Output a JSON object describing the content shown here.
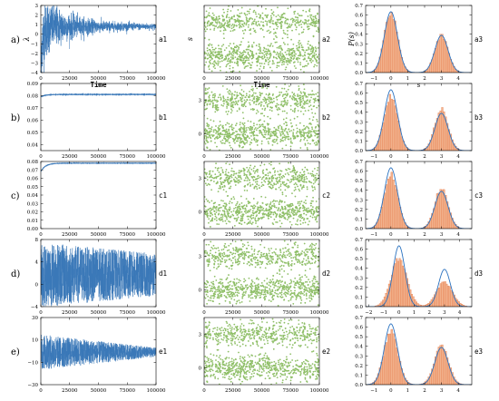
{
  "figure": {
    "rows": [
      {
        "row_label": "a)",
        "panels": [
          {
            "type": "line",
            "label": "a1",
            "ylim": [
              -4,
              3
            ],
            "yticks": [
              -4,
              -3,
              -2,
              -1,
              0,
              1,
              2,
              3
            ],
            "xticks": [
              0,
              25000,
              50000,
              75000,
              100000
            ],
            "xlabel": "Time",
            "ylabel": "λ",
            "signal": {
              "kind": "converge",
              "target": 0.8,
              "start": -3,
              "amp0": 2.8,
              "decay": 0.22,
              "floor": 0.35
            }
          },
          {
            "type": "scatter",
            "label": "a2",
            "ylim": [
              -1.5,
              4.5
            ],
            "yticks": [],
            "xticks": [
              0,
              25000,
              50000,
              75000,
              100000
            ],
            "xlabel": "Time",
            "ylabel": "s",
            "bands": [
              {
                "center": 0,
                "sd": 0.55
              },
              {
                "center": 3,
                "sd": 0.55
              }
            ]
          },
          {
            "type": "hist",
            "label": "a3",
            "xlim": [
              -1.5,
              4.8
            ],
            "xticks": [
              -1,
              0,
              1,
              2,
              3,
              4
            ],
            "ylim": [
              0,
              0.7
            ],
            "yticks": [
              0,
              0.1,
              0.2,
              0.3,
              0.4,
              0.5,
              0.6,
              0.7
            ],
            "xlabel": "s",
            "ylabel": "P(s)",
            "theory": {
              "w1": 0.62,
              "w2": 0.38,
              "sd": 0.39
            },
            "empirical": {
              "w1": 0.62,
              "w2": 0.38,
              "sd": 0.39
            }
          }
        ]
      },
      {
        "row_label": "b)",
        "panels": [
          {
            "type": "line",
            "label": "b1",
            "ylim": [
              0.035,
              0.09
            ],
            "yticks": [
              0.04,
              0.05,
              0.06,
              0.07,
              0.08,
              0.09
            ],
            "xticks": [
              0,
              25000,
              50000,
              75000,
              100000
            ],
            "xlabel": "",
            "ylabel": "",
            "signal": {
              "kind": "saturate",
              "start": 0.079,
              "target": 0.081
            }
          },
          {
            "type": "scatter",
            "label": "b2",
            "ylim": [
              -1.5,
              4.5
            ],
            "yticks": [
              0,
              3
            ],
            "xticks": [
              0,
              25000,
              50000,
              75000,
              100000
            ],
            "xlabel": "",
            "ylabel": "",
            "bands": [
              {
                "center": 0,
                "sd": 0.55
              },
              {
                "center": 3,
                "sd": 0.55
              }
            ]
          },
          {
            "type": "hist",
            "label": "b3",
            "xlim": [
              -1.5,
              4.8
            ],
            "xticks": [
              -1,
              0,
              1,
              2,
              3,
              4
            ],
            "ylim": [
              0,
              0.7
            ],
            "yticks": [
              0,
              0.1,
              0.2,
              0.3,
              0.4,
              0.5,
              0.6,
              0.7
            ],
            "xlabel": "",
            "ylabel": "",
            "theory": {
              "w1": 0.62,
              "w2": 0.38,
              "sd": 0.39
            },
            "empirical": {
              "w1": 0.57,
              "w2": 0.43,
              "sd": 0.4
            }
          }
        ]
      },
      {
        "row_label": "c)",
        "panels": [
          {
            "type": "line",
            "label": "c1",
            "ylim": [
              0,
              0.08
            ],
            "yticks": [
              0,
              0.01,
              0.02,
              0.03,
              0.04,
              0.05,
              0.06,
              0.07,
              0.08
            ],
            "xticks": [
              0,
              25000,
              50000,
              75000,
              100000
            ],
            "xlabel": "",
            "ylabel": "",
            "signal": {
              "kind": "saturate",
              "start": 0.068,
              "target": 0.078
            }
          },
          {
            "type": "scatter",
            "label": "c2",
            "ylim": [
              -1.5,
              4.5
            ],
            "yticks": [
              0,
              3
            ],
            "xticks": [
              0,
              25000,
              50000,
              75000,
              100000
            ],
            "xlabel": "",
            "ylabel": "",
            "bands": [
              {
                "center": 0,
                "sd": 0.55
              },
              {
                "center": 3,
                "sd": 0.55
              }
            ]
          },
          {
            "type": "hist",
            "label": "c3",
            "xlim": [
              -1.5,
              4.8
            ],
            "xticks": [
              -1,
              0,
              1,
              2,
              3,
              4
            ],
            "ylim": [
              0,
              0.7
            ],
            "yticks": [
              0,
              0.1,
              0.2,
              0.3,
              0.4,
              0.5,
              0.6,
              0.7
            ],
            "xlabel": "",
            "ylabel": "",
            "theory": {
              "w1": 0.62,
              "w2": 0.38,
              "sd": 0.39
            },
            "empirical": {
              "w1": 0.58,
              "w2": 0.42,
              "sd": 0.4
            }
          }
        ]
      },
      {
        "row_label": "d)",
        "panels": [
          {
            "type": "line",
            "label": "d1",
            "ylim": [
              -4,
              8
            ],
            "yticks": [
              -4,
              0,
              4,
              8
            ],
            "xticks": [
              0,
              25000,
              50000,
              75000,
              100000
            ],
            "xlabel": "",
            "ylabel": "",
            "signal": {
              "kind": "noise",
              "center": 1.7,
              "amp0": 5.8,
              "amp1": 3.8
            }
          },
          {
            "type": "scatter",
            "label": "d2",
            "ylim": [
              -1.5,
              4.5
            ],
            "yticks": [
              0,
              3
            ],
            "xticks": [
              0,
              25000,
              50000,
              75000,
              100000
            ],
            "xlabel": "",
            "ylabel": "",
            "bands": [
              {
                "center": 0,
                "sd": 0.55
              },
              {
                "center": 3,
                "sd": 0.55
              }
            ]
          },
          {
            "type": "hist",
            "label": "d3",
            "xlim": [
              -2.2,
              4.8
            ],
            "xticks": [
              -2,
              -1,
              0,
              1,
              2,
              3,
              4
            ],
            "ylim": [
              0,
              0.7
            ],
            "yticks": [
              0,
              0.1,
              0.2,
              0.3,
              0.4,
              0.5,
              0.6,
              0.7
            ],
            "xlabel": "",
            "ylabel": "",
            "theory": {
              "w1": 0.62,
              "w2": 0.38,
              "sd": 0.39
            },
            "empirical": {
              "w1": 0.66,
              "w2": 0.34,
              "sd": 0.53
            }
          }
        ]
      },
      {
        "row_label": "e)",
        "panels": [
          {
            "type": "line",
            "label": "e1",
            "ylim": [
              -30,
              30
            ],
            "yticks": [
              -30,
              -10,
              10,
              30
            ],
            "xticks": [
              0,
              25000,
              50000,
              75000,
              100000
            ],
            "xlabel": "",
            "ylabel": "",
            "signal": {
              "kind": "noise",
              "center": -1,
              "amp0": 16,
              "amp1": 4
            }
          },
          {
            "type": "scatter",
            "label": "e2",
            "ylim": [
              -1.5,
              4.5
            ],
            "yticks": [
              0,
              3
            ],
            "xticks": [
              0,
              25000,
              50000,
              75000,
              100000
            ],
            "xlabel": "",
            "ylabel": "",
            "bands": [
              {
                "center": 0,
                "sd": 0.55
              },
              {
                "center": 3,
                "sd": 0.55
              }
            ]
          },
          {
            "type": "hist",
            "label": "e3",
            "xlim": [
              -1.5,
              4.8
            ],
            "xticks": [
              -1,
              0,
              1,
              2,
              3,
              4
            ],
            "ylim": [
              0,
              0.7
            ],
            "yticks": [
              0,
              0.1,
              0.2,
              0.3,
              0.4,
              0.5,
              0.6,
              0.7
            ],
            "xlabel": "",
            "ylabel": "",
            "theory": {
              "w1": 0.62,
              "w2": 0.38,
              "sd": 0.39
            },
            "empirical": {
              "w1": 0.58,
              "w2": 0.42,
              "sd": 0.42
            }
          }
        ]
      }
    ]
  },
  "colors": {
    "line": "#3a78b8",
    "scatter": "#8fbf68",
    "hist_fill": "#f2b38e",
    "hist_edge": "#e57a4a",
    "theory": "#2a72c0",
    "axis": "#000000"
  },
  "chart_data": [
    {
      "type": "line",
      "label": "a1",
      "xlabel": "Time",
      "ylabel": "λ",
      "x_range": [
        0,
        100000
      ],
      "y_range": [
        -4,
        3
      ],
      "description": "λ trajectory converging to about 0.8"
    },
    {
      "type": "scatter",
      "label": "a2",
      "xlabel": "Time",
      "ylabel": "s",
      "x_range": [
        0,
        100000
      ],
      "clusters": [
        0,
        3
      ]
    },
    {
      "type": "bar",
      "label": "a3",
      "xlabel": "s",
      "ylabel": "P(s)",
      "x_range": [
        -1.5,
        4.8
      ],
      "y_range": [
        0,
        0.7
      ],
      "peaks": [
        {
          "x": 0,
          "y": 0.64
        },
        {
          "x": 3,
          "y": 0.39
        }
      ]
    },
    {
      "type": "line",
      "label": "b1",
      "x_range": [
        0,
        100000
      ],
      "y_range": [
        0.035,
        0.09
      ],
      "final_value": 0.081
    },
    {
      "type": "scatter",
      "label": "b2",
      "x_range": [
        0,
        100000
      ],
      "clusters": [
        0,
        3
      ]
    },
    {
      "type": "bar",
      "label": "b3",
      "x_range": [
        -1.5,
        4.8
      ],
      "y_range": [
        0,
        0.7
      ],
      "peaks": [
        {
          "x": 0,
          "y": 0.57
        },
        {
          "x": 3,
          "y": 0.43
        }
      ]
    },
    {
      "type": "line",
      "label": "c1",
      "x_range": [
        0,
        100000
      ],
      "y_range": [
        0,
        0.08
      ],
      "final_value": 0.078
    },
    {
      "type": "scatter",
      "label": "c2",
      "x_range": [
        0,
        100000
      ],
      "clusters": [
        0,
        3
      ]
    },
    {
      "type": "bar",
      "label": "c3",
      "x_range": [
        -1.5,
        4.8
      ],
      "y_range": [
        0,
        0.7
      ],
      "peaks": [
        {
          "x": 0,
          "y": 0.58
        },
        {
          "x": 3,
          "y": 0.42
        }
      ]
    },
    {
      "type": "line",
      "label": "d1",
      "x_range": [
        0,
        100000
      ],
      "y_range": [
        -4,
        8
      ]
    },
    {
      "type": "scatter",
      "label": "d2",
      "x_range": [
        0,
        100000
      ],
      "clusters": [
        0,
        3
      ]
    },
    {
      "type": "bar",
      "label": "d3",
      "x_range": [
        -2.2,
        4.8
      ],
      "y_range": [
        0,
        0.7
      ],
      "peaks": [
        {
          "x": 0,
          "y": 0.5
        },
        {
          "x": 3,
          "y": 0.26
        }
      ]
    },
    {
      "type": "line",
      "label": "e1",
      "x_range": [
        0,
        100000
      ],
      "y_range": [
        -30,
        30
      ]
    },
    {
      "type": "scatter",
      "label": "e2",
      "x_range": [
        0,
        100000
      ],
      "clusters": [
        0,
        3
      ]
    },
    {
      "type": "bar",
      "label": "e3",
      "x_range": [
        -1.5,
        4.8
      ],
      "y_range": [
        0,
        0.7
      ],
      "peaks": [
        {
          "x": 0,
          "y": 0.55
        },
        {
          "x": 3,
          "y": 0.4
        }
      ]
    }
  ]
}
